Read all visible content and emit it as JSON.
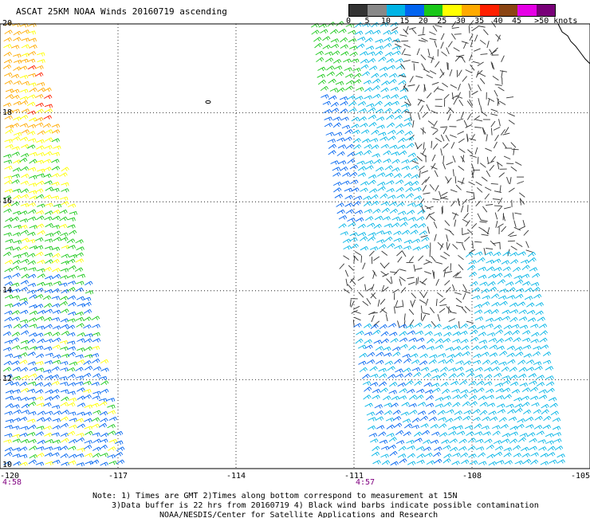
{
  "title": "ASCAT 25KM NOAA Winds 20160719 ascending",
  "colorbar": {
    "labels": [
      "0",
      "5",
      "10",
      "15",
      "20",
      "25",
      "30",
      "35",
      "40",
      "45",
      ">50 knots"
    ],
    "colors": [
      "#333333",
      "#888888",
      "#00b4e6",
      "#0064f0",
      "#19c819",
      "#ffff00",
      "#ffaa00",
      "#ff2000",
      "#8b4513",
      "#e600e6",
      "#780078"
    ]
  },
  "lat_labels": [
    "20",
    "18",
    "16",
    "14",
    "12",
    "10"
  ],
  "lon_labels": [
    "-120",
    "-117",
    "-114",
    "-111",
    "-108",
    "-105"
  ],
  "time_labels": [
    "4:58",
    "4:57"
  ],
  "notes": {
    "line1": "Note: 1) Times are GMT 2)Times along bottom correspond to measurement at 15N",
    "line2": "3)Data buffer is 22 hrs from 20160719 4) Black wind barbs indicate possible contamination",
    "line3": "NOAA/NESDIS/Center for Satellite Applications and Research"
  },
  "map": {
    "lat_range": [
      10,
      20
    ],
    "lon_range": [
      -120,
      -105
    ],
    "grid": "dotted",
    "swath_left": "western swath, winds 10-30 knots",
    "swath_right": "central swath, winds 0-20 knots"
  }
}
